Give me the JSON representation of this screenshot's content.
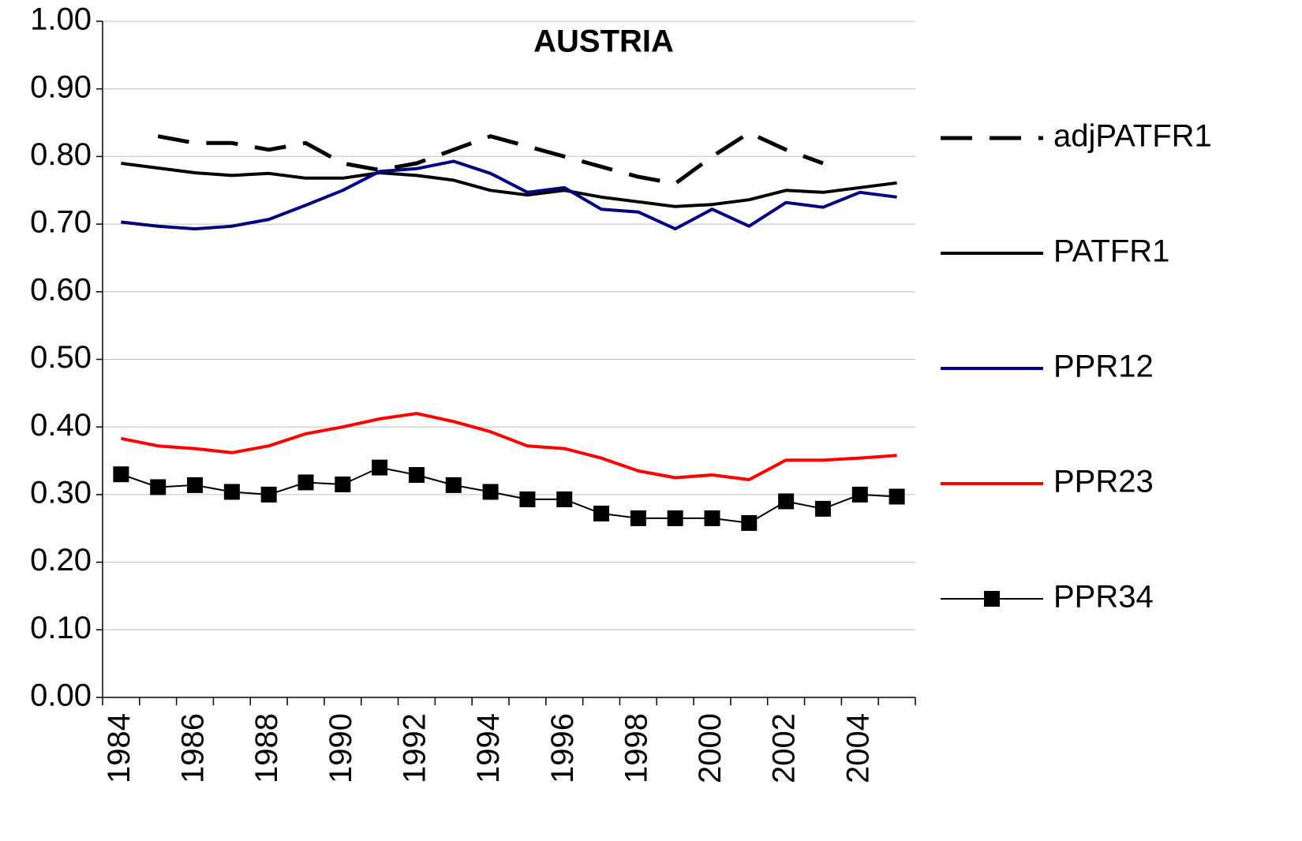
{
  "chart_data": {
    "type": "line",
    "title": "AUSTRIA",
    "categories": [
      "1984",
      null,
      "1986",
      null,
      "1988",
      null,
      "1990",
      null,
      "1992",
      null,
      "1994",
      null,
      "1996",
      null,
      "1998",
      null,
      "2000",
      null,
      "2002",
      null,
      "2004",
      null
    ],
    "ylim": [
      0,
      1
    ],
    "yticks": [
      {
        "value": 0,
        "label": "0.00"
      },
      {
        "value": 0.1,
        "label": "0.10"
      },
      {
        "value": 0.2,
        "label": "0.20"
      },
      {
        "value": 0.3,
        "label": "0.30"
      },
      {
        "value": 0.4,
        "label": "0.40"
      },
      {
        "value": 0.5,
        "label": "0.50"
      },
      {
        "value": 0.6,
        "label": "0.60"
      },
      {
        "value": 0.7,
        "label": "0.70"
      },
      {
        "value": 0.8,
        "label": "0.80"
      },
      {
        "value": 0.9,
        "label": "0.90"
      },
      {
        "value": 1,
        "label": "1.00"
      }
    ],
    "grid": true,
    "legend": "right",
    "series": [
      {
        "name": "adjPATFR1",
        "color": "#000000",
        "line_style": "dashed",
        "values": [
          null,
          0.83,
          0.82,
          0.82,
          0.81,
          0.82,
          0.79,
          0.78,
          0.79,
          0.81,
          0.83,
          0.815,
          0.8,
          0.785,
          0.77,
          0.76,
          0.8,
          0.835,
          0.81,
          0.79,
          null,
          null
        ]
      },
      {
        "name": "PATFR1",
        "color": "#000000",
        "line_style": "solid",
        "values": [
          0.79,
          0.783,
          0.776,
          0.772,
          0.775,
          0.768,
          0.768,
          0.776,
          0.772,
          0.765,
          0.75,
          0.743,
          0.75,
          0.74,
          0.733,
          0.726,
          0.729,
          0.736,
          0.75,
          0.747,
          0.754,
          0.761
        ]
      },
      {
        "name": "PPR12",
        "color": "#000080",
        "line_style": "solid",
        "values": [
          0.703,
          0.697,
          0.693,
          0.697,
          0.707,
          0.728,
          0.75,
          0.778,
          0.782,
          0.793,
          0.775,
          0.747,
          0.754,
          0.722,
          0.718,
          0.693,
          0.722,
          0.697,
          0.732,
          0.725,
          0.747,
          0.74
        ]
      },
      {
        "name": "PPR23",
        "color": "#ff0000",
        "line_style": "solid",
        "values": [
          0.383,
          0.372,
          0.368,
          0.362,
          0.372,
          0.39,
          0.4,
          0.412,
          0.42,
          0.408,
          0.393,
          0.372,
          0.368,
          0.354,
          0.335,
          0.325,
          0.329,
          0.322,
          0.351,
          0.351,
          0.354,
          0.358
        ]
      },
      {
        "name": "PPR34",
        "color": "#000000",
        "line_style": "thin",
        "marker": "square",
        "values": [
          0.33,
          0.311,
          0.314,
          0.304,
          0.3,
          0.318,
          0.315,
          0.34,
          0.329,
          0.314,
          0.304,
          0.293,
          0.293,
          0.272,
          0.265,
          0.265,
          0.265,
          0.258,
          0.29,
          0.279,
          0.3,
          0.297
        ]
      }
    ]
  }
}
